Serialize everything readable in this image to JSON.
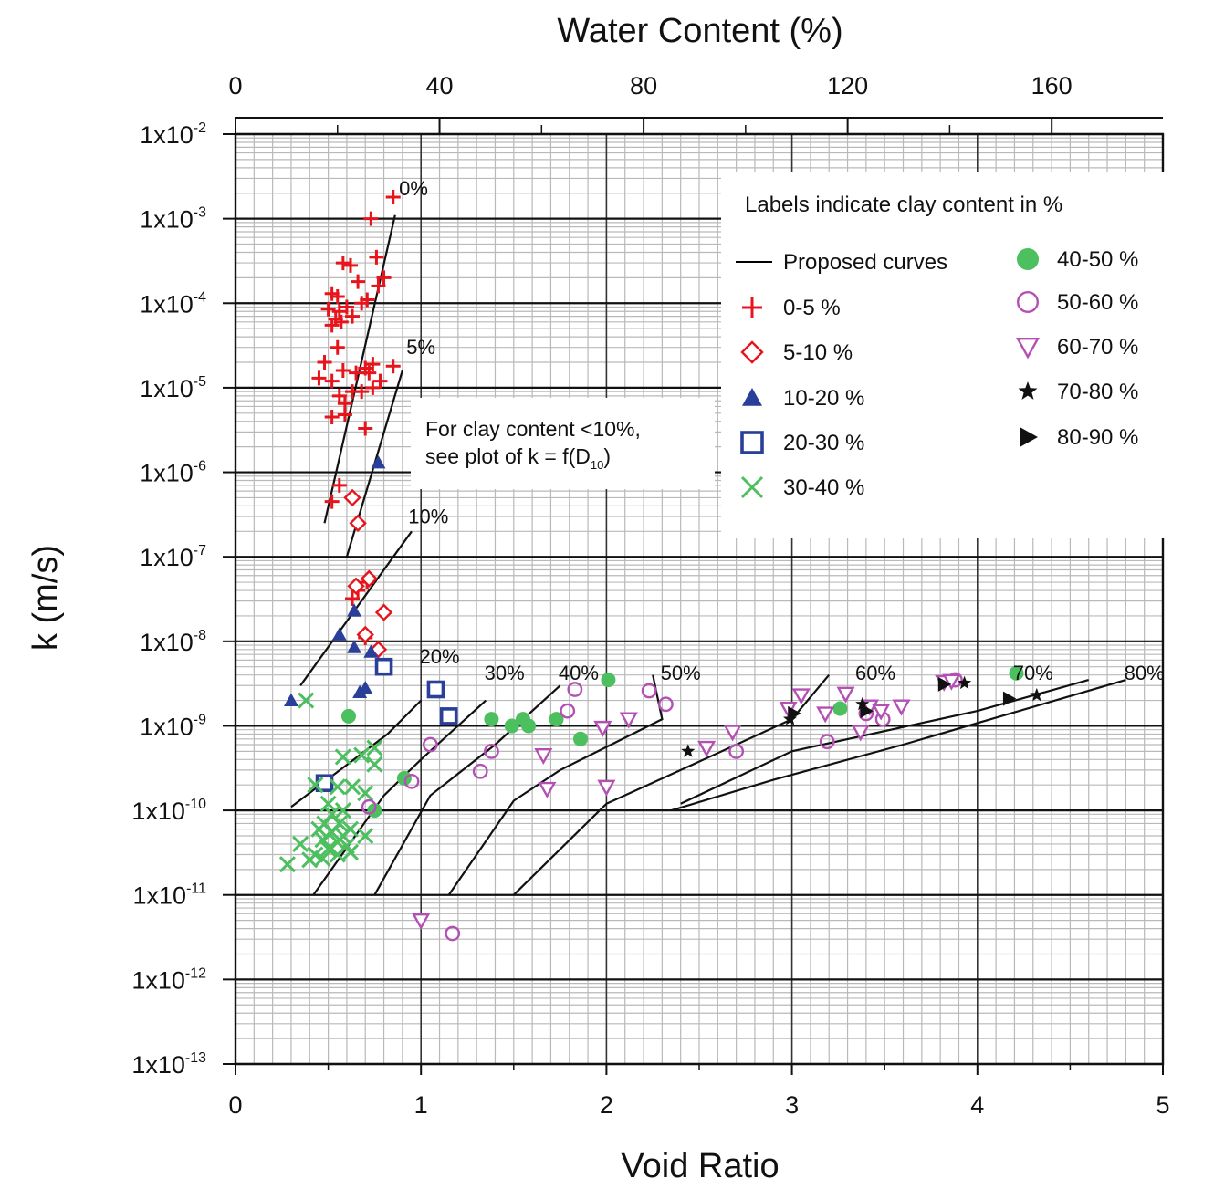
{
  "chart_data": {
    "type": "scatter",
    "title": "",
    "xlabel": "Void Ratio",
    "ylabel": "k (m/s)",
    "x2label": "Water Content (%)",
    "xlim": [
      0,
      5
    ],
    "x2lim": [
      0,
      181.8
    ],
    "x2ticks": [
      "0",
      "40",
      "80",
      "120",
      "160"
    ],
    "x2tick_values": [
      0,
      40,
      80,
      120,
      160
    ],
    "xticks": [
      "0",
      "1",
      "2",
      "3",
      "4",
      "5"
    ],
    "xtick_values": [
      0,
      1,
      2,
      3,
      4,
      5
    ],
    "yscale": "log",
    "ylim": [
      1e-13,
      0.01
    ],
    "ytick_values": [
      0.01,
      0.001,
      0.0001,
      1e-05,
      1e-06,
      1e-07,
      1e-08,
      1e-09,
      1e-10,
      1e-11,
      1e-12,
      1e-13
    ],
    "ytick_mantissa": "1x10",
    "ytick_exponents": [
      "-2",
      "-3",
      "-4",
      "-5",
      "-6",
      "-7",
      "-8",
      "-9",
      "-10",
      "-11",
      "-12",
      "-13"
    ],
    "grid": true,
    "legend_title": "Labels indicate clay content in %",
    "legend_placement": "top-right",
    "note_lines": [
      "For clay content <10%,",
      "see plot of k = f(D",
      "10",
      ")"
    ],
    "proposed_curves_label": "Proposed curves",
    "curves": [
      {
        "label": "0%",
        "label_pos": [
          0.96,
          0.0019
        ],
        "points": [
          [
            0.48,
            2.5e-07
          ],
          [
            0.86,
            0.0011
          ]
        ]
      },
      {
        "label": "5%",
        "label_pos": [
          1.0,
          2.5e-05
        ],
        "points": [
          [
            0.6,
            1e-07
          ],
          [
            0.9,
            1.6e-05
          ]
        ]
      },
      {
        "label": "10%",
        "label_pos": [
          1.04,
          2.5e-07
        ],
        "points": [
          [
            0.35,
            3e-09
          ],
          [
            0.95,
            2e-07
          ]
        ]
      },
      {
        "label": "20%",
        "label_pos": [
          1.1,
          5.5e-09
        ],
        "points": [
          [
            0.3,
            1.1e-10
          ],
          [
            0.82,
            8e-10
          ],
          [
            1.0,
            2e-09
          ]
        ]
      },
      {
        "label": "30%",
        "label_pos": [
          1.45,
          3.5e-09
        ],
        "points": [
          [
            0.42,
            1e-11
          ],
          [
            0.8,
            1.5e-10
          ],
          [
            1.0,
            4e-10
          ],
          [
            1.35,
            2e-09
          ]
        ]
      },
      {
        "label": "40%",
        "label_pos": [
          1.85,
          3.5e-09
        ],
        "points": [
          [
            0.75,
            1e-11
          ],
          [
            1.05,
            1.5e-10
          ],
          [
            1.4,
            6e-10
          ],
          [
            1.75,
            3e-09
          ]
        ]
      },
      {
        "label": "50%",
        "label_pos": [
          2.4,
          3.5e-09
        ],
        "points": [
          [
            1.15,
            1e-11
          ],
          [
            1.5,
            1.3e-10
          ],
          [
            1.75,
            3e-10
          ],
          [
            2.3,
            1.2e-09
          ],
          [
            2.25,
            4e-09
          ]
        ]
      },
      {
        "label": "60%",
        "label_pos": [
          3.45,
          3.5e-09
        ],
        "points": [
          [
            1.5,
            1e-11
          ],
          [
            2.0,
            1.2e-10
          ],
          [
            2.4,
            3e-10
          ],
          [
            3.0,
            1.2e-09
          ],
          [
            3.2,
            4e-09
          ]
        ]
      },
      {
        "label": "70%",
        "label_pos": [
          4.3,
          3.5e-09
        ],
        "points": [
          [
            2.4,
            1.2e-10
          ],
          [
            3.0,
            5e-10
          ],
          [
            4.0,
            1.5e-09
          ],
          [
            4.6,
            3.5e-09
          ]
        ]
      },
      {
        "label": "80%",
        "label_pos": [
          4.9,
          3.5e-09
        ],
        "points": [
          [
            2.35,
            1e-10
          ],
          [
            2.9,
            2.3e-10
          ],
          [
            3.6,
            6e-10
          ],
          [
            4.8,
            3.5e-09
          ]
        ]
      }
    ],
    "series": [
      {
        "name": "0-5 %",
        "marker": "plus",
        "color": "#e8141b",
        "points": [
          [
            0.85,
            0.0018
          ],
          [
            0.73,
            0.001
          ],
          [
            0.76,
            0.00035
          ],
          [
            0.58,
            0.0003
          ],
          [
            0.62,
            0.00028
          ],
          [
            0.66,
            0.00018
          ],
          [
            0.8,
            0.0002
          ],
          [
            0.77,
            0.00016
          ],
          [
            0.52,
            0.00013
          ],
          [
            0.55,
            0.00012
          ],
          [
            0.71,
            0.00011
          ],
          [
            0.68,
            0.0001
          ],
          [
            0.5,
            8.5e-05
          ],
          [
            0.6,
            9e-05
          ],
          [
            0.56,
            8e-05
          ],
          [
            0.54,
            6.5e-05
          ],
          [
            0.63,
            7e-05
          ],
          [
            0.52,
            5.5e-05
          ],
          [
            0.57,
            6e-05
          ],
          [
            0.55,
            3e-05
          ],
          [
            0.85,
            1.8e-05
          ],
          [
            0.7,
            1.7e-05
          ],
          [
            0.74,
            1.9e-05
          ],
          [
            0.48,
            2e-05
          ],
          [
            0.58,
            1.6e-05
          ],
          [
            0.65,
            1.5e-05
          ],
          [
            0.72,
            1.5e-05
          ],
          [
            0.45,
            1.3e-05
          ],
          [
            0.52,
            1.2e-05
          ],
          [
            0.78,
            1.2e-05
          ],
          [
            0.74,
            1e-05
          ],
          [
            0.63,
            9e-06
          ],
          [
            0.68,
            9e-06
          ],
          [
            0.56,
            8e-06
          ],
          [
            0.59,
            6.5e-06
          ],
          [
            0.52,
            4.5e-06
          ],
          [
            0.59,
            4.8e-06
          ],
          [
            0.7,
            3.3e-06
          ],
          [
            0.56,
            7e-07
          ],
          [
            0.52,
            4.5e-07
          ],
          [
            0.66,
            4e-08
          ],
          [
            0.71,
            5e-08
          ],
          [
            0.7,
            1.1e-08
          ],
          [
            0.63,
            3.2e-08
          ]
        ]
      },
      {
        "name": "5-10 %",
        "marker": "diamond",
        "color": "#e8141b",
        "points": [
          [
            0.63,
            5e-07
          ],
          [
            0.66,
            2.5e-07
          ],
          [
            0.65,
            4.5e-08
          ],
          [
            0.72,
            5.5e-08
          ],
          [
            0.8,
            2.2e-08
          ],
          [
            0.7,
            1.2e-08
          ],
          [
            0.77,
            8e-09
          ]
        ]
      },
      {
        "name": "10-20 %",
        "marker": "triangle-up",
        "color": "#2a3f9a",
        "points": [
          [
            0.77,
            1.3e-06
          ],
          [
            0.64,
            2.3e-08
          ],
          [
            0.56,
            1.2e-08
          ],
          [
            0.64,
            8.5e-09
          ],
          [
            0.73,
            7.5e-09
          ],
          [
            0.7,
            2.8e-09
          ],
          [
            0.67,
            2.5e-09
          ],
          [
            0.3,
            2e-09
          ]
        ]
      },
      {
        "name": "20-30 %",
        "marker": "square",
        "color": "#2a3f9a",
        "points": [
          [
            0.8,
            5e-09
          ],
          [
            1.08,
            2.7e-09
          ],
          [
            1.15,
            1.3e-09
          ],
          [
            0.48,
            2.1e-10
          ]
        ]
      },
      {
        "name": "30-40 %",
        "marker": "cross",
        "color": "#4cbf5f",
        "points": [
          [
            0.38,
            2e-09
          ],
          [
            0.75,
            5.5e-10
          ],
          [
            0.58,
            4.3e-10
          ],
          [
            0.68,
            4.5e-10
          ],
          [
            0.75,
            3.5e-10
          ],
          [
            0.43,
            2e-10
          ],
          [
            0.55,
            1.9e-10
          ],
          [
            0.63,
            1.9e-10
          ],
          [
            0.7,
            1.6e-10
          ],
          [
            0.5,
            1.2e-10
          ],
          [
            0.58,
            1e-10
          ],
          [
            0.52,
            9e-11
          ],
          [
            0.48,
            7e-11
          ],
          [
            0.56,
            7e-11
          ],
          [
            0.62,
            6e-11
          ],
          [
            0.45,
            6e-11
          ],
          [
            0.52,
            5.5e-11
          ],
          [
            0.58,
            5e-11
          ],
          [
            0.47,
            4.5e-11
          ],
          [
            0.55,
            4.2e-11
          ],
          [
            0.7,
            5e-11
          ],
          [
            0.6,
            3.8e-11
          ],
          [
            0.35,
            4e-11
          ],
          [
            0.5,
            3.5e-11
          ],
          [
            0.43,
            3e-11
          ],
          [
            0.55,
            3e-11
          ],
          [
            0.62,
            3.2e-11
          ],
          [
            0.4,
            2.6e-11
          ],
          [
            0.47,
            2.7e-11
          ],
          [
            0.28,
            2.3e-11
          ]
        ]
      },
      {
        "name": "40-50 %",
        "marker": "circle-filled",
        "color": "#4cbf5f",
        "points": [
          [
            0.61,
            1.3e-09
          ],
          [
            0.91,
            2.4e-10
          ],
          [
            0.75,
            1e-10
          ],
          [
            1.38,
            1.2e-09
          ],
          [
            1.49,
            1e-09
          ],
          [
            1.55,
            1.2e-09
          ],
          [
            1.58,
            1e-09
          ],
          [
            1.73,
            1.2e-09
          ],
          [
            1.86,
            7e-10
          ],
          [
            2.01,
            3.5e-09
          ],
          [
            3.26,
            1.6e-09
          ],
          [
            4.21,
            4.2e-09
          ]
        ]
      },
      {
        "name": "50-60 %",
        "marker": "circle-open",
        "color": "#b450b4",
        "points": [
          [
            0.95,
            2.2e-10
          ],
          [
            1.05,
            6e-10
          ],
          [
            1.38,
            5e-10
          ],
          [
            1.32,
            2.9e-10
          ],
          [
            1.79,
            1.5e-09
          ],
          [
            1.83,
            2.7e-09
          ],
          [
            2.23,
            2.6e-09
          ],
          [
            2.32,
            1.8e-09
          ],
          [
            2.7,
            5e-10
          ],
          [
            3.19,
            6.5e-10
          ],
          [
            3.4,
            1.4e-09
          ],
          [
            3.49,
            1.2e-09
          ],
          [
            3.88,
            3.5e-09
          ],
          [
            0.72,
            1.1e-10
          ],
          [
            1.17,
            3.5e-12
          ]
        ]
      },
      {
        "name": "60-70 %",
        "marker": "triangle-down",
        "color": "#b450b4",
        "points": [
          [
            1.0,
            5e-12
          ],
          [
            1.66,
            4.5e-10
          ],
          [
            1.68,
            1.8e-10
          ],
          [
            1.98,
            9.5e-10
          ],
          [
            2.0,
            1.9e-10
          ],
          [
            2.12,
            1.2e-09
          ],
          [
            2.54,
            5.5e-10
          ],
          [
            2.68,
            8.5e-10
          ],
          [
            2.98,
            1.6e-09
          ],
          [
            3.05,
            2.3e-09
          ],
          [
            3.18,
            1.4e-09
          ],
          [
            3.29,
            2.4e-09
          ],
          [
            3.37,
            8.5e-10
          ],
          [
            3.42,
            1.7e-09
          ],
          [
            3.48,
            1.5e-09
          ],
          [
            3.59,
            1.7e-09
          ],
          [
            3.82,
            3.3e-09
          ],
          [
            3.86,
            3.4e-09
          ]
        ]
      },
      {
        "name": "70-80 %",
        "marker": "star",
        "color": "#111111",
        "points": [
          [
            2.44,
            5e-10
          ],
          [
            2.99,
            1.2e-09
          ],
          [
            3.38,
            1.8e-09
          ],
          [
            3.93,
            3.2e-09
          ],
          [
            4.32,
            2.3e-09
          ]
        ]
      },
      {
        "name": "80-90 %",
        "marker": "triangle-right",
        "color": "#111111",
        "points": [
          [
            3.01,
            1.4e-09
          ],
          [
            3.4,
            1.5e-09
          ],
          [
            3.82,
            3.1e-09
          ],
          [
            4.17,
            2.1e-09
          ]
        ]
      }
    ]
  }
}
